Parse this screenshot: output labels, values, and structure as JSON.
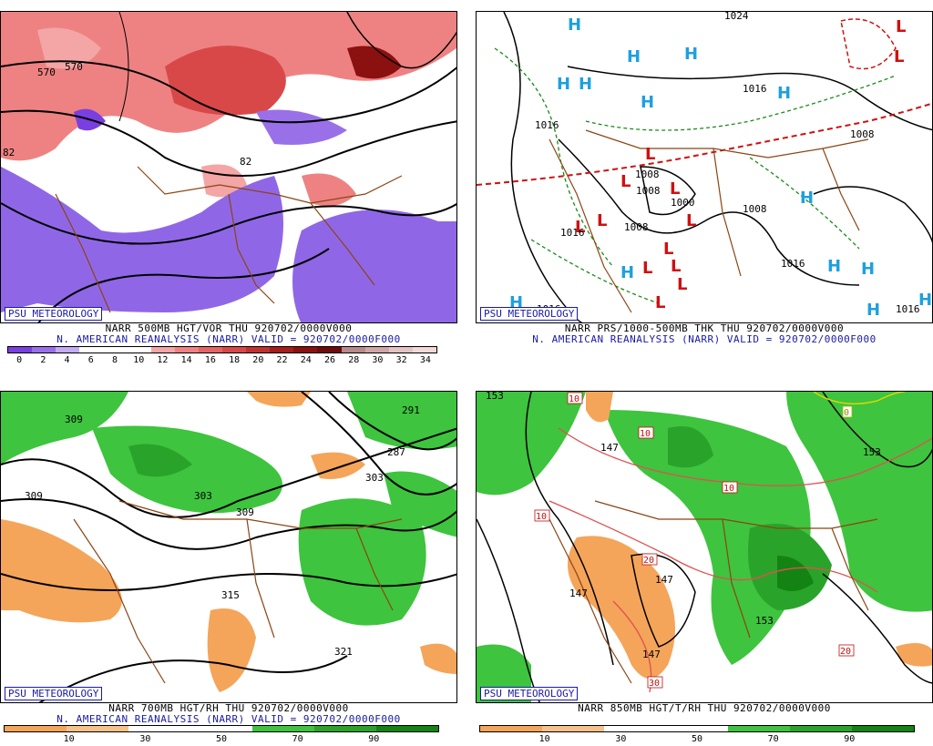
{
  "branding": "PSU METEOROLOGY",
  "panels": [
    {
      "id": "p500",
      "title_line1": "NARR 500MB HGT/VOR THU 920702/0000V000",
      "title_line2": "N. AMERICAN REANALYSIS (NARR) VALID = 920702/0000F000",
      "contour_labels": [
        "570",
        "570",
        "82",
        "82"
      ],
      "scale_labels": [
        "0",
        "2",
        "4",
        "6",
        "8",
        "10",
        "12",
        "14",
        "16",
        "18",
        "20",
        "22",
        "24",
        "26",
        "28",
        "30",
        "32",
        "34"
      ],
      "scale_colors": [
        "#7a3fe0",
        "#9a70e8",
        "#c2acf3",
        "#ffffff",
        "#ffffff",
        "#ffffff",
        "#f4a5a5",
        "#ee8282",
        "#e46464",
        "#d94848",
        "#c03232",
        "#a51d1d",
        "#8b1010",
        "#6e0a0a",
        "#b88a8a",
        "#cfa6a6",
        "#e4c3c3",
        "#f2d9d9"
      ]
    },
    {
      "id": "pslp",
      "title_line1": "NARR PRS/1000-500MB THK THU 920702/0000V000",
      "title_line2": "N. AMERICAN REANALYSIS (NARR) VALID = 920702/0000F000",
      "contour_labels": [
        "1024",
        "1016",
        "1016",
        "1008",
        "1008",
        "1008",
        "1008",
        "1000",
        "1008",
        "1016",
        "1016",
        "1016",
        "1016"
      ],
      "highs_label": "H",
      "lows_label": "L"
    },
    {
      "id": "p700",
      "title_line1": "NARR 700MB HGT/RH THU 920702/0000V000",
      "title_line2": "N. AMERICAN REANALYSIS (NARR) VALID = 920702/0000F000",
      "contour_labels": [
        "309",
        "309",
        "303",
        "309",
        "291",
        "287",
        "303",
        "315",
        "321"
      ],
      "scale_labels": [
        "10",
        "30",
        "50",
        "70",
        "90"
      ],
      "scale_colors": [
        "#f4a55a",
        "#f7c18c",
        "#ffffff",
        "#ffffff",
        "#3ec43e",
        "#2aa32a",
        "#138413"
      ]
    },
    {
      "id": "p850",
      "title_line1": "NARR 850MB HGT/T/RH THU 920702/0000V000",
      "title_line2": "",
      "contour_labels": [
        "153",
        "147",
        "147",
        "153",
        "147",
        "147",
        "153"
      ],
      "temp_labels": [
        "10",
        "10",
        "10",
        "10",
        "20",
        "20",
        "30",
        "0"
      ],
      "scale_labels": [
        "10",
        "30",
        "50",
        "70",
        "90"
      ],
      "scale_colors": [
        "#f4a55a",
        "#f7c18c",
        "#ffffff",
        "#ffffff",
        "#3ec43e",
        "#2aa32a",
        "#138413"
      ]
    }
  ]
}
